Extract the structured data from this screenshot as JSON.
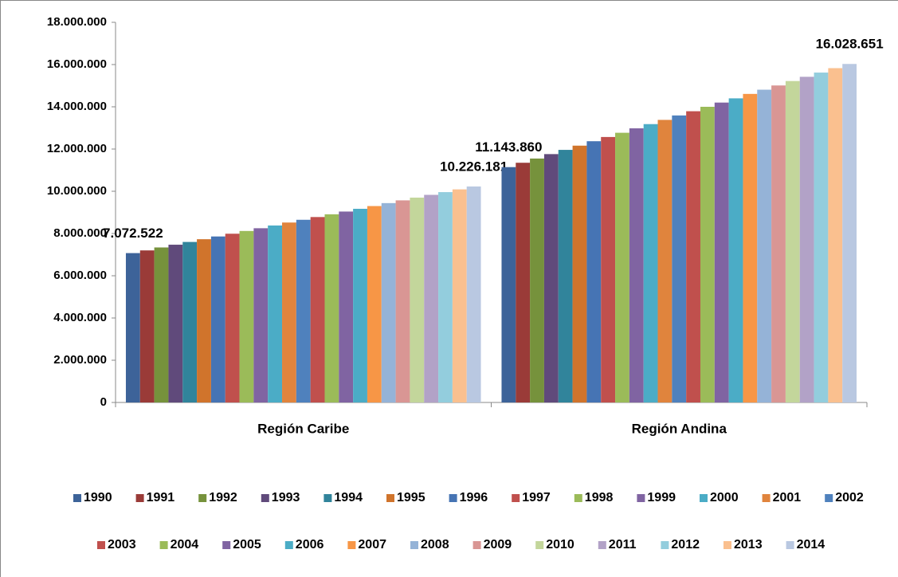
{
  "chart_data": {
    "type": "bar",
    "categories": [
      "Región Caribe",
      "Región Andina"
    ],
    "series": [
      {
        "name": "1990",
        "color": "#3d6399",
        "values": [
          7072522,
          11143860
        ],
        "value_labels": [
          "7.072.522",
          "11.143.860"
        ]
      },
      {
        "name": "1991",
        "color": "#9a3b38",
        "values": [
          7200000,
          11350000
        ]
      },
      {
        "name": "1992",
        "color": "#76923c",
        "values": [
          7340000,
          11550000
        ]
      },
      {
        "name": "1993",
        "color": "#604a7b",
        "values": [
          7470000,
          11760000
        ]
      },
      {
        "name": "1994",
        "color": "#31849b",
        "values": [
          7600000,
          11960000
        ]
      },
      {
        "name": "1995",
        "color": "#d0742c",
        "values": [
          7730000,
          12160000
        ]
      },
      {
        "name": "1996",
        "color": "#4674b4",
        "values": [
          7860000,
          12370000
        ]
      },
      {
        "name": "1997",
        "color": "#c0504d",
        "values": [
          7990000,
          12570000
        ]
      },
      {
        "name": "1998",
        "color": "#9bbb59",
        "values": [
          8120000,
          12770000
        ]
      },
      {
        "name": "1999",
        "color": "#8064a2",
        "values": [
          8250000,
          12980000
        ]
      },
      {
        "name": "2000",
        "color": "#4bacc6",
        "values": [
          8380000,
          13180000
        ]
      },
      {
        "name": "2001",
        "color": "#e0843d",
        "values": [
          8520000,
          13380000
        ]
      },
      {
        "name": "2002",
        "color": "#4f81bd",
        "values": [
          8650000,
          13590000
        ]
      },
      {
        "name": "2003",
        "color": "#c0504d",
        "values": [
          8780000,
          13790000
        ]
      },
      {
        "name": "2004",
        "color": "#9bbb59",
        "values": [
          8910000,
          14000000
        ]
      },
      {
        "name": "2005",
        "color": "#8064a2",
        "values": [
          9040000,
          14200000
        ]
      },
      {
        "name": "2006",
        "color": "#4bacc6",
        "values": [
          9170000,
          14400000
        ]
      },
      {
        "name": "2007",
        "color": "#f79646",
        "values": [
          9300000,
          14610000
        ]
      },
      {
        "name": "2008",
        "color": "#95b3d7",
        "values": [
          9440000,
          14810000
        ]
      },
      {
        "name": "2009",
        "color": "#d99694",
        "values": [
          9570000,
          15010000
        ]
      },
      {
        "name": "2010",
        "color": "#c3d69b",
        "values": [
          9700000,
          15220000
        ]
      },
      {
        "name": "2011",
        "color": "#b2a2c7",
        "values": [
          9830000,
          15420000
        ]
      },
      {
        "name": "2012",
        "color": "#93cddd",
        "values": [
          9960000,
          15620000
        ]
      },
      {
        "name": "2013",
        "color": "#fac08f",
        "values": [
          10090000,
          15830000
        ]
      },
      {
        "name": "2014",
        "color": "#b9c8e1",
        "values": [
          10226181,
          16028651
        ],
        "value_labels": [
          "10.226.181",
          "16.028.651"
        ]
      }
    ],
    "ylim": [
      0,
      18000000
    ],
    "yticks": [
      0,
      {
        "value": 2000000,
        "label": "2.000.000"
      },
      {
        "value": 4000000,
        "label": "4.000.000"
      },
      {
        "value": 6000000,
        "label": "6.000.000"
      },
      {
        "value": 8000000,
        "label": "8.000.000"
      },
      {
        "value": 10000000,
        "label": "10.000.000"
      },
      {
        "value": 12000000,
        "label": "12.000.000"
      },
      {
        "value": 14000000,
        "label": "14.000.000"
      },
      {
        "value": 16000000,
        "label": "16.000.000"
      },
      {
        "value": 18000000,
        "label": "18.000.000"
      }
    ],
    "grid": false
  }
}
